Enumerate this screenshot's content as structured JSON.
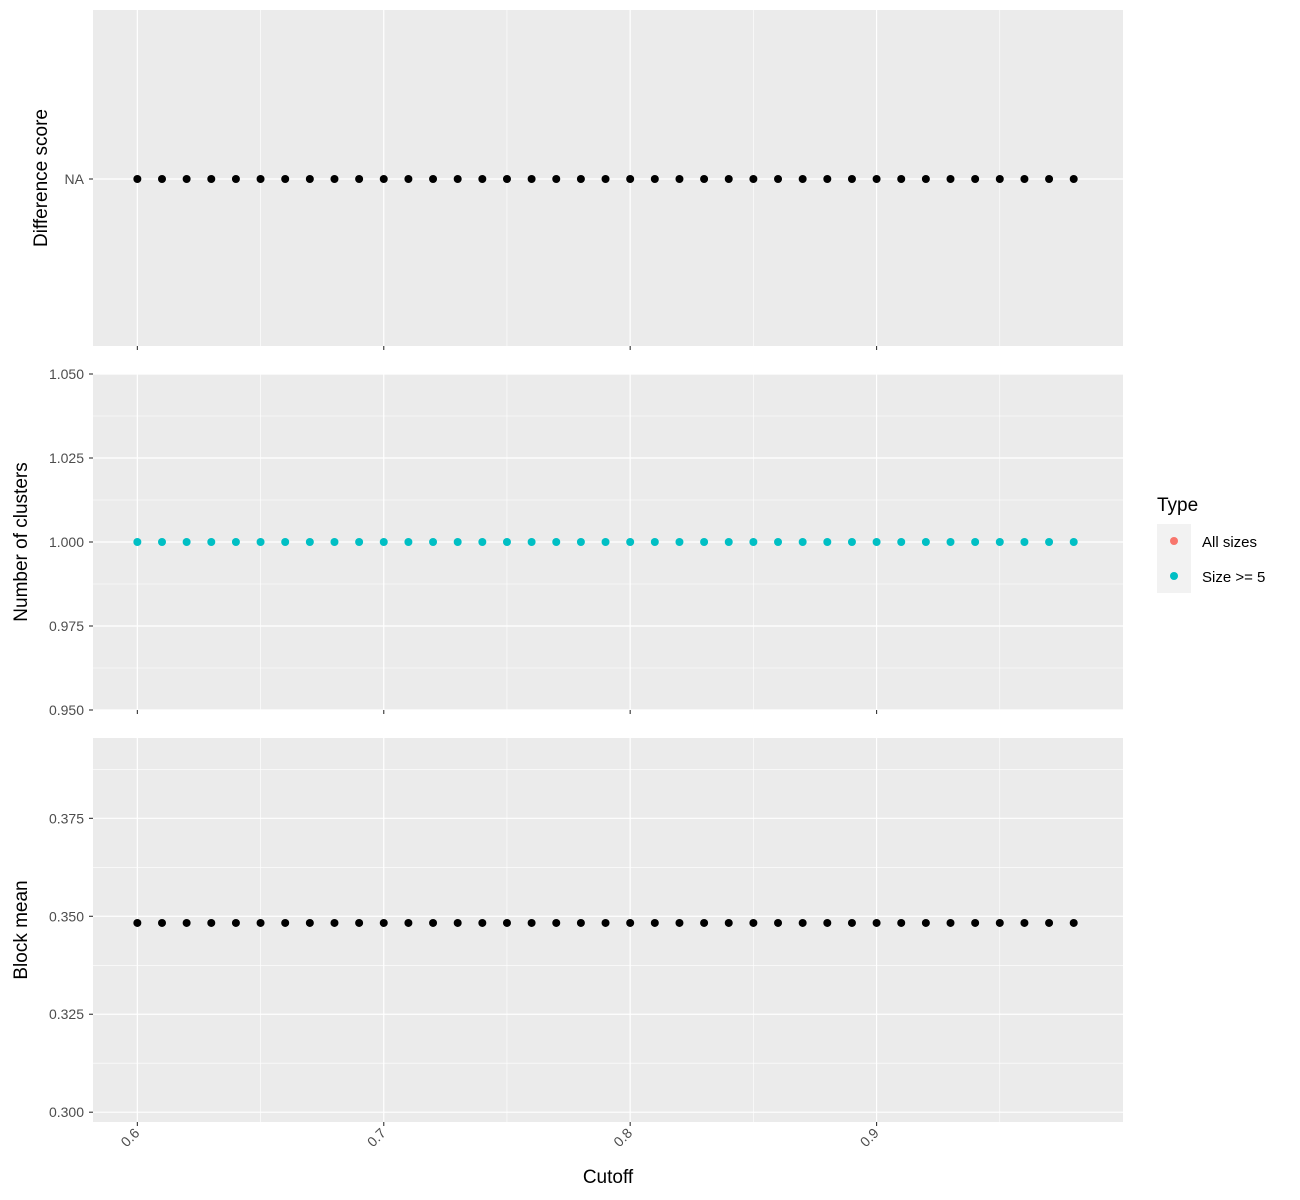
{
  "chart_data": {
    "type": "scatter",
    "x": [
      0.6,
      0.61,
      0.62,
      0.63,
      0.64,
      0.65,
      0.66,
      0.67,
      0.68,
      0.69,
      0.7,
      0.71,
      0.72,
      0.73,
      0.74,
      0.75,
      0.76,
      0.77,
      0.78,
      0.79,
      0.8,
      0.81,
      0.82,
      0.83,
      0.84,
      0.85,
      0.86,
      0.87,
      0.88,
      0.89,
      0.9,
      0.91,
      0.92,
      0.93,
      0.94,
      0.95,
      0.96,
      0.97,
      0.98
    ],
    "xlabel": "Cutoff",
    "xlim": [
      0.582,
      1.0
    ],
    "x_ticks": [
      0.6,
      0.7,
      0.8,
      0.9
    ],
    "x_tick_labels": [
      "0.6",
      "0.7",
      "0.8",
      "0.9"
    ],
    "panels": [
      {
        "ylabel": "Difference score",
        "y_tick_labels": [
          "NA"
        ],
        "y_value": "NA",
        "point_color": "#000000"
      },
      {
        "ylabel": "Number of clusters",
        "ylim": [
          0.95,
          1.05
        ],
        "y_ticks": [
          0.95,
          0.975,
          1.0,
          1.025,
          1.05
        ],
        "y_tick_labels": [
          "0.950",
          "0.975",
          "1.000",
          "1.025",
          "1.050"
        ],
        "y_value": 1.0,
        "point_color": "#00BFC4"
      },
      {
        "ylabel": "Block mean",
        "ylim": [
          0.2975,
          0.3955
        ],
        "y_ticks": [
          0.3,
          0.325,
          0.35,
          0.375
        ],
        "y_tick_labels": [
          "0.300",
          "0.325",
          "0.350",
          "0.375"
        ],
        "y_value": 0.3483,
        "point_color": "#000000"
      }
    ],
    "legend": {
      "title": "Type",
      "placement": "right",
      "entries": [
        {
          "label": "All sizes",
          "color": "#F8766D"
        },
        {
          "label": "Size >= 5",
          "color": "#00BFC4"
        }
      ]
    },
    "grid": true,
    "panel_background": "#EBEBEB"
  }
}
